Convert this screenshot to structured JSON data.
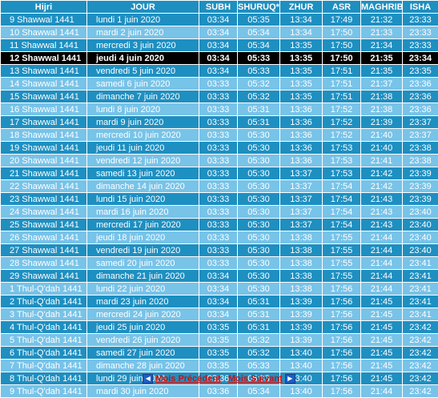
{
  "headers": [
    "Hijri",
    "JOUR",
    "SUBH",
    "SHURUQ*",
    "ZHUR",
    "ASR",
    "MAGHRIB",
    "ISHA"
  ],
  "rows": [
    [
      "9 Shawwal 1441",
      "lundi 1 juin 2020",
      "03:34",
      "05:35",
      "13:34",
      "17:49",
      "21:32",
      "23:33"
    ],
    [
      "10 Shawwal 1441",
      "mardi 2 juin 2020",
      "03:34",
      "05:34",
      "13:34",
      "17:50",
      "21:33",
      "23:33"
    ],
    [
      "11 Shawwal 1441",
      "mercredi 3 juin 2020",
      "03:34",
      "05:34",
      "13:35",
      "17:50",
      "21:34",
      "23:33"
    ],
    [
      "12 Shawwal 1441",
      "jeudi 4 juin 2020",
      "03:34",
      "05:33",
      "13:35",
      "17:50",
      "21:35",
      "23:34"
    ],
    [
      "13 Shawwal 1441",
      "vendredi 5 juin 2020",
      "03:34",
      "05:33",
      "13:35",
      "17:51",
      "21:35",
      "23:35"
    ],
    [
      "14 Shawwal 1441",
      "samedi 6 juin 2020",
      "03:33",
      "05:32",
      "13:35",
      "17:51",
      "21:37",
      "23:36"
    ],
    [
      "15 Shawwal 1441",
      "dimanche 7 juin 2020",
      "03:33",
      "05:32",
      "13:35",
      "17:51",
      "21:38",
      "23:36"
    ],
    [
      "16 Shawwal 1441",
      "lundi 8 juin 2020",
      "03:33",
      "05:31",
      "13:36",
      "17:52",
      "21:38",
      "23:36"
    ],
    [
      "17 Shawwal 1441",
      "mardi 9 juin 2020",
      "03:33",
      "05:31",
      "13:36",
      "17:52",
      "21:39",
      "23:37"
    ],
    [
      "18 Shawwal 1441",
      "mercredi 10 juin 2020",
      "03:33",
      "05:30",
      "13:36",
      "17:52",
      "21:40",
      "23:37"
    ],
    [
      "19 Shawwal 1441",
      "jeudi 11 juin 2020",
      "03:33",
      "05:30",
      "13:36",
      "17:53",
      "21:40",
      "23:38"
    ],
    [
      "20 Shawwal 1441",
      "vendredi 12 juin 2020",
      "03:33",
      "05:30",
      "13:36",
      "17:53",
      "21:41",
      "23:38"
    ],
    [
      "21 Shawwal 1441",
      "samedi 13 juin 2020",
      "03:33",
      "05:30",
      "13:37",
      "17:53",
      "21:42",
      "23:39"
    ],
    [
      "22 Shawwal 1441",
      "dimanche 14 juin 2020",
      "03:33",
      "05:30",
      "13:37",
      "17:54",
      "21:42",
      "23:39"
    ],
    [
      "23 Shawwal 1441",
      "lundi 15 juin 2020",
      "03:33",
      "05:30",
      "13:37",
      "17:54",
      "21:43",
      "23:39"
    ],
    [
      "24 Shawwal 1441",
      "mardi 16 juin 2020",
      "03:33",
      "05:30",
      "13:37",
      "17:54",
      "21:43",
      "23:40"
    ],
    [
      "25 Shawwal 1441",
      "mercredi 17 juin 2020",
      "03:33",
      "05:30",
      "13:37",
      "17:54",
      "21:43",
      "23:40"
    ],
    [
      "26 Shawwal 1441",
      "jeudi 18 juin 2020",
      "03:33",
      "05:30",
      "13:38",
      "17:55",
      "21:44",
      "23:40"
    ],
    [
      "27 Shawwal 1441",
      "vendredi 19 juin 2020",
      "03:33",
      "05:30",
      "13:38",
      "17:55",
      "21:44",
      "23:40"
    ],
    [
      "28 Shawwal 1441",
      "samedi 20 juin 2020",
      "03:33",
      "05:30",
      "13:38",
      "17:55",
      "21:44",
      "23:41"
    ],
    [
      "29 Shawwal 1441",
      "dimanche 21 juin 2020",
      "03:34",
      "05:30",
      "13:38",
      "17:55",
      "21:44",
      "23:41"
    ],
    [
      "1 Thul-Q'dah 1441",
      "lundi 22 juin 2020",
      "03:34",
      "05:30",
      "13:38",
      "17:56",
      "21:44",
      "23:41"
    ],
    [
      "2 Thul-Q'dah 1441",
      "mardi 23 juin 2020",
      "03:34",
      "05:31",
      "13:39",
      "17:56",
      "21:45",
      "23:41"
    ],
    [
      "3 Thul-Q'dah 1441",
      "mercredi 24 juin 2020",
      "03:34",
      "05:31",
      "13:39",
      "17:56",
      "21:45",
      "23:41"
    ],
    [
      "4 Thul-Q'dah 1441",
      "jeudi 25 juin 2020",
      "03:35",
      "05:31",
      "13:39",
      "17:56",
      "21:45",
      "23:42"
    ],
    [
      "5 Thul-Q'dah 1441",
      "vendredi 26 juin 2020",
      "03:35",
      "05:32",
      "13:39",
      "17:56",
      "21:45",
      "23:42"
    ],
    [
      "6 Thul-Q'dah 1441",
      "samedi 27 juin 2020",
      "03:35",
      "05:32",
      "13:40",
      "17:56",
      "21:45",
      "23:42"
    ],
    [
      "7 Thul-Q'dah 1441",
      "dimanche 28 juin 2020",
      "03:35",
      "05:33",
      "13:40",
      "17:56",
      "21:45",
      "23:42"
    ],
    [
      "8 Thul-Q'dah 1441",
      "lundi 29 juin 2020",
      "03:36",
      "05:33",
      "13:40",
      "17:56",
      "21:45",
      "23:42"
    ],
    [
      "9 Thul-Q'dah 1441",
      "mardi 30 juin 2020",
      "03:36",
      "05:34",
      "13:40",
      "17:56",
      "21:44",
      "23:42"
    ]
  ],
  "today_index": 3,
  "nav": {
    "prev_label": "Mois Précédent",
    "next_label": "Mois Suivant",
    "prev_icon": "arrow-left-icon",
    "next_icon": "arrow-right-icon"
  },
  "colors": {
    "row_dark": "#1e8fc1",
    "row_light": "#78c3e8",
    "row_today": "#000000",
    "text": "#ffffff",
    "nav_link": "#cc1111"
  }
}
